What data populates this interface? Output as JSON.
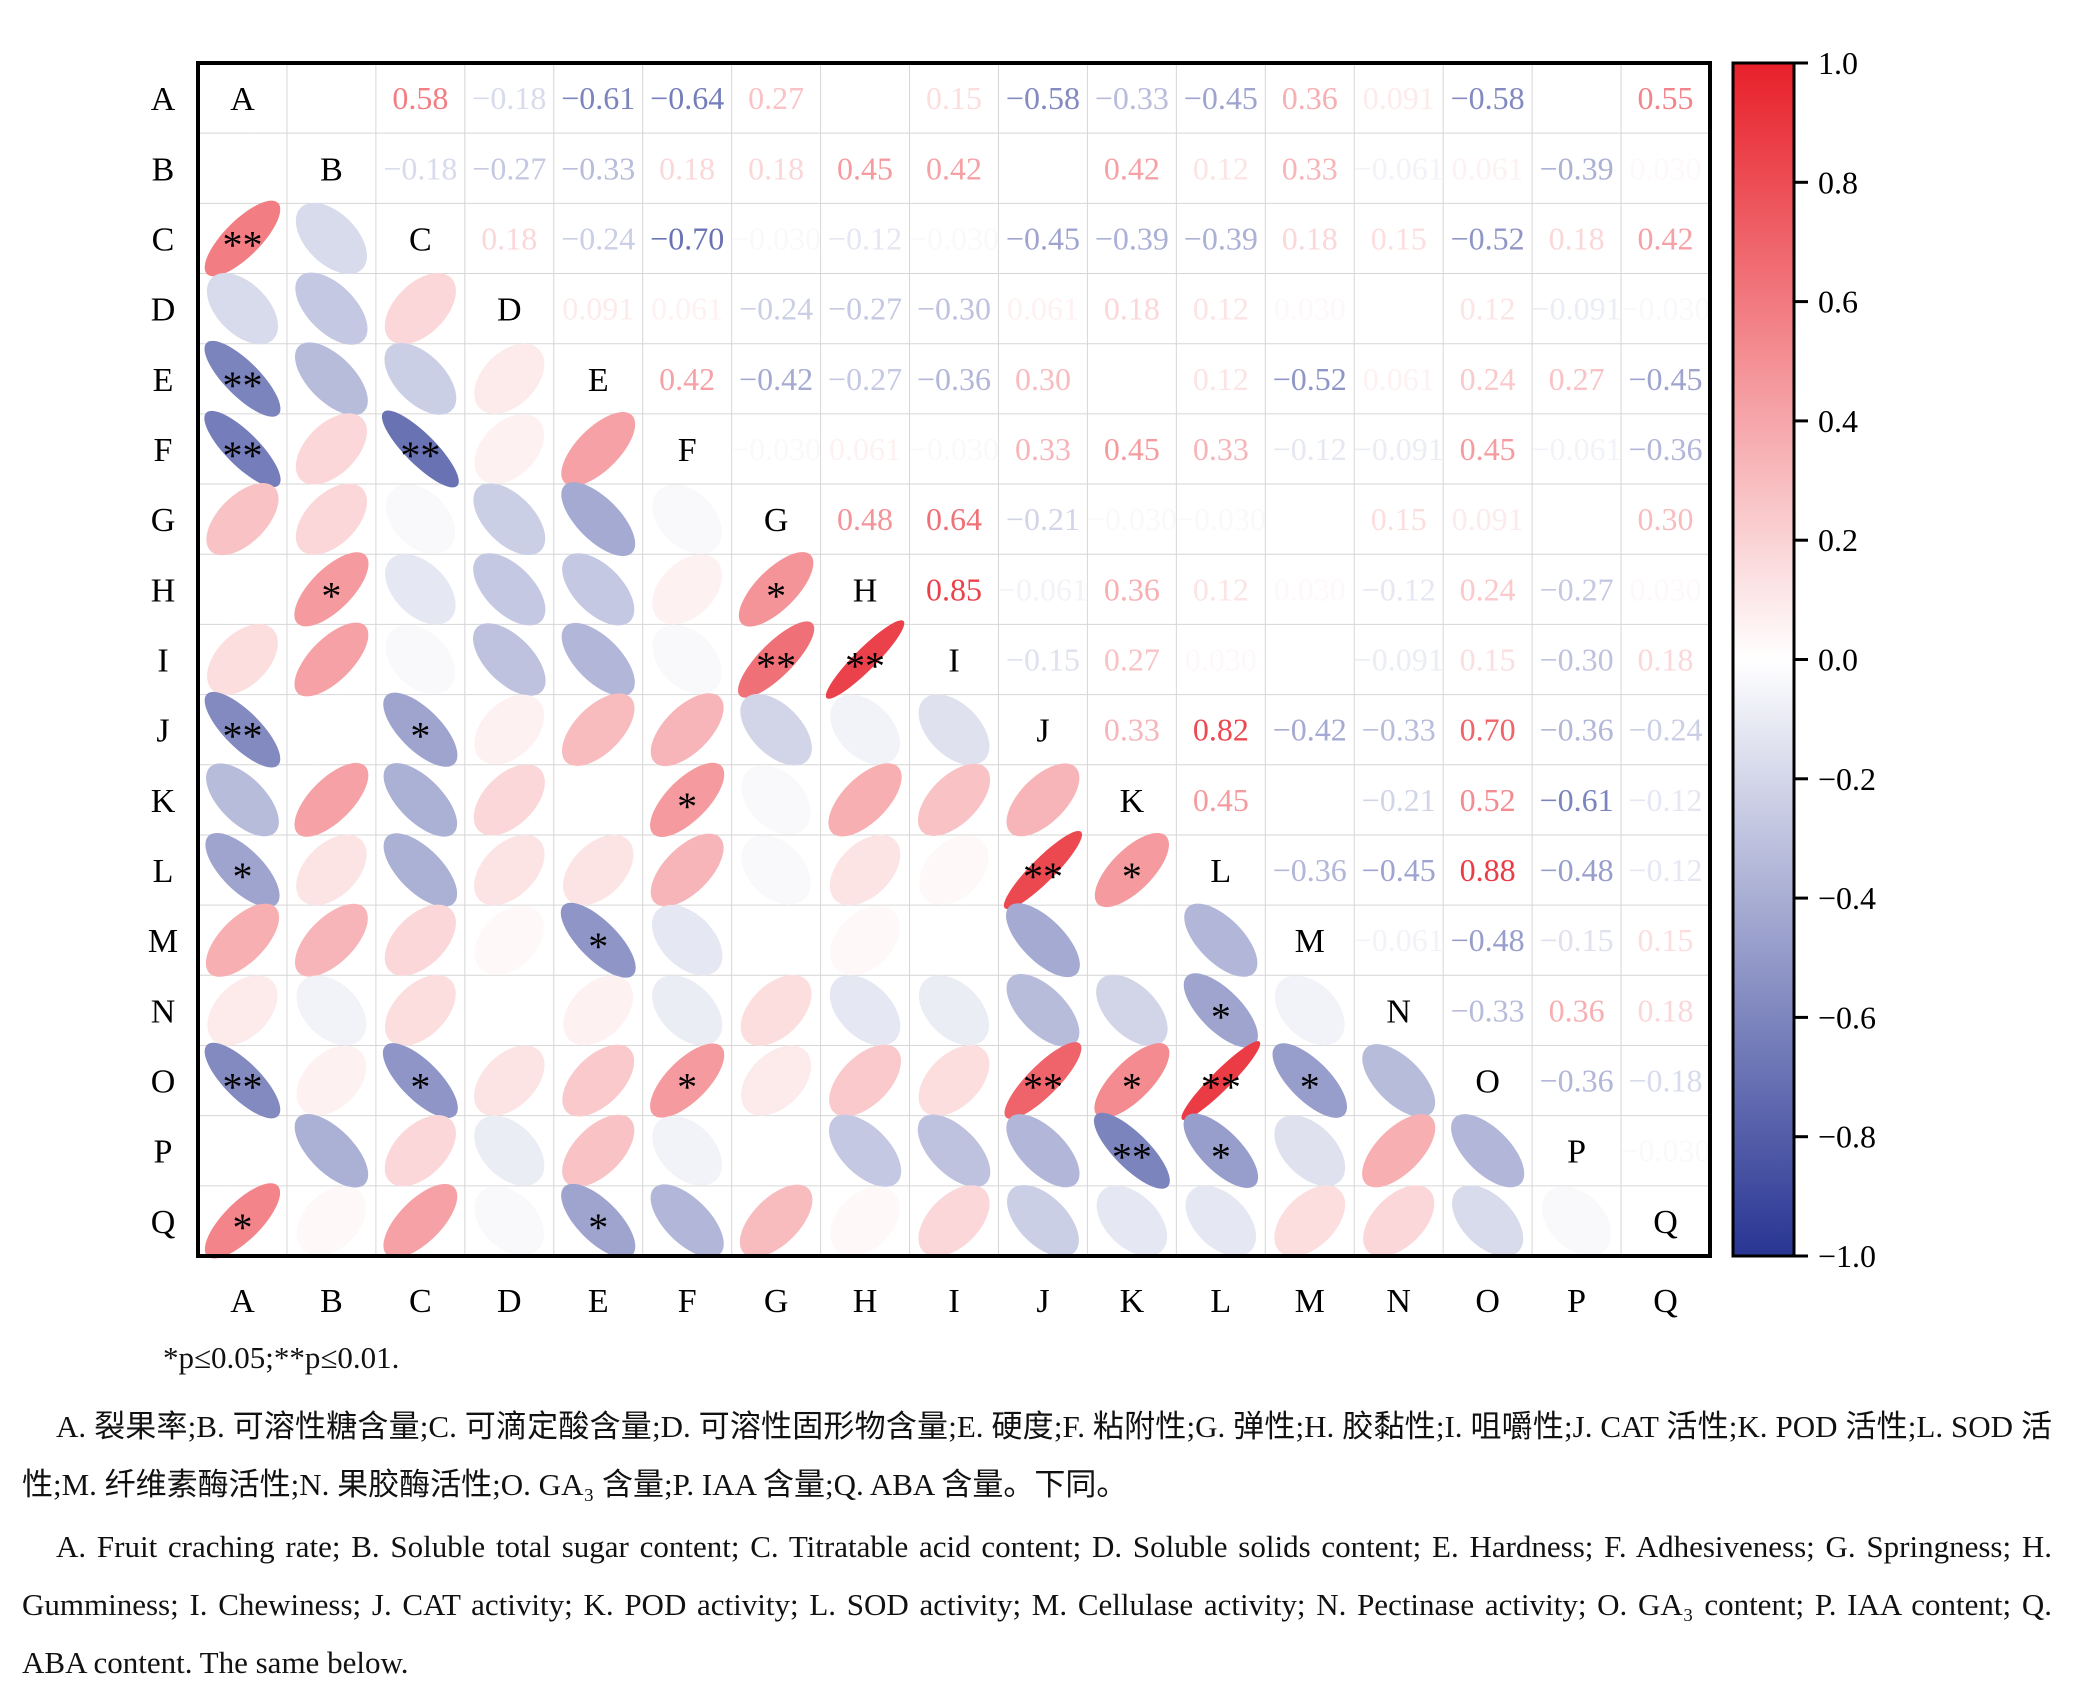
{
  "chart_data": {
    "type": "heatmap",
    "subtype": "correlation-matrix-mixed",
    "title": "",
    "variables": [
      "A",
      "B",
      "C",
      "D",
      "E",
      "F",
      "G",
      "H",
      "I",
      "J",
      "K",
      "L",
      "M",
      "N",
      "O",
      "P",
      "Q"
    ],
    "upper_triangle": "numbers",
    "lower_triangle": "ellipses",
    "matrix": [
      [
        1,
        0,
        0.58,
        -0.18,
        -0.61,
        -0.64,
        0.27,
        0,
        0.15,
        -0.58,
        -0.33,
        -0.45,
        0.36,
        0.091,
        -0.58,
        0,
        0.55
      ],
      [
        0,
        1,
        -0.18,
        -0.27,
        -0.33,
        0.18,
        0.18,
        0.45,
        0.42,
        0,
        0.42,
        0.12,
        0.33,
        -0.061,
        0.061,
        -0.39,
        0.03
      ],
      [
        0.58,
        -0.18,
        1,
        0.18,
        -0.24,
        -0.7,
        -0.03,
        -0.12,
        -0.03,
        -0.45,
        -0.39,
        -0.39,
        0.18,
        0.15,
        -0.52,
        0.18,
        0.42
      ],
      [
        -0.18,
        -0.27,
        0.18,
        1,
        0.091,
        0.061,
        -0.24,
        -0.27,
        -0.3,
        0.061,
        0.18,
        0.12,
        0.03,
        0,
        0.12,
        -0.091,
        -0.03
      ],
      [
        -0.61,
        -0.33,
        -0.24,
        0.091,
        1,
        0.42,
        -0.42,
        -0.27,
        -0.36,
        0.3,
        0,
        0.12,
        -0.52,
        0.061,
        0.24,
        0.27,
        -0.45
      ],
      [
        -0.64,
        0.18,
        -0.7,
        0.061,
        0.42,
        1,
        -0.03,
        0.061,
        -0.03,
        0.33,
        0.45,
        0.33,
        -0.12,
        -0.091,
        0.45,
        -0.061,
        -0.36
      ],
      [
        0.27,
        0.18,
        -0.03,
        -0.24,
        -0.42,
        -0.03,
        1,
        0.48,
        0.64,
        -0.21,
        -0.03,
        -0.03,
        0,
        0.15,
        0.091,
        0,
        0.3
      ],
      [
        0,
        0.45,
        -0.12,
        -0.27,
        -0.27,
        0.061,
        0.48,
        1,
        0.85,
        -0.061,
        0.36,
        0.12,
        0.03,
        -0.12,
        0.24,
        -0.27,
        0.03
      ],
      [
        0.15,
        0.42,
        -0.03,
        -0.3,
        -0.36,
        -0.03,
        0.64,
        0.85,
        1,
        -0.15,
        0.27,
        0.03,
        0,
        -0.091,
        0.15,
        -0.3,
        0.18
      ],
      [
        -0.58,
        0,
        -0.45,
        0.061,
        0.3,
        0.33,
        -0.21,
        -0.061,
        -0.15,
        1,
        0.33,
        0.82,
        -0.42,
        -0.33,
        0.7,
        -0.36,
        -0.24
      ],
      [
        -0.33,
        0.42,
        -0.39,
        0.18,
        0,
        0.45,
        -0.03,
        0.36,
        0.27,
        0.33,
        1,
        0.45,
        0,
        -0.21,
        0.52,
        -0.61,
        -0.12
      ],
      [
        -0.45,
        0.12,
        -0.39,
        0.12,
        0.12,
        0.33,
        -0.03,
        0.12,
        0.03,
        0.82,
        0.45,
        1,
        -0.36,
        -0.45,
        0.88,
        -0.48,
        -0.12
      ],
      [
        0.36,
        0.33,
        0.18,
        0.03,
        -0.52,
        -0.12,
        0,
        0.03,
        0,
        -0.42,
        0,
        -0.36,
        1,
        -0.061,
        -0.48,
        -0.15,
        0.15
      ],
      [
        0.091,
        -0.061,
        0.15,
        0,
        0.061,
        -0.091,
        0.15,
        -0.12,
        -0.091,
        -0.33,
        -0.21,
        -0.45,
        -0.061,
        1,
        -0.33,
        0.36,
        0.18
      ],
      [
        -0.58,
        0.061,
        -0.52,
        0.12,
        0.24,
        0.45,
        0.091,
        0.24,
        0.15,
        0.7,
        0.52,
        0.88,
        -0.48,
        -0.33,
        1,
        -0.36,
        -0.18
      ],
      [
        0,
        -0.39,
        0.18,
        -0.091,
        0.27,
        -0.061,
        0,
        -0.27,
        -0.3,
        -0.36,
        -0.61,
        -0.48,
        -0.15,
        0.36,
        -0.36,
        1,
        -0.03
      ],
      [
        0.55,
        0.03,
        0.42,
        -0.03,
        -0.45,
        -0.36,
        0.3,
        0.03,
        0.18,
        -0.24,
        -0.12,
        -0.12,
        0.15,
        0.18,
        -0.18,
        -0.03,
        1
      ]
    ],
    "upper_labels": [
      [
        "",
        "",
        "0.58",
        "-0.18",
        "-0.61",
        "-0.64",
        "0.27",
        "",
        "0.15",
        "-0.58",
        "-0.33",
        "-0.45",
        "0.36",
        "0.091",
        "-0.58",
        "",
        "0.55"
      ],
      [
        "",
        "",
        "-0.18",
        "-0.27",
        "-0.33",
        "0.18",
        "0.18",
        "0.45",
        "0.42",
        "",
        "0.42",
        "0.12",
        "0.33",
        "-0.061",
        "0.061",
        "-0.39",
        "0.030"
      ],
      [
        "",
        "",
        "",
        "0.18",
        "-0.24",
        "-0.70",
        "-0.030",
        "-0.12",
        "-0.030",
        "-0.45",
        "-0.39",
        "-0.39",
        "0.18",
        "0.15",
        "-0.52",
        "0.18",
        "0.42"
      ],
      [
        "",
        "",
        "",
        "",
        "0.091",
        "0.061",
        "-0.24",
        "-0.27",
        "-0.30",
        "0.061",
        "0.18",
        "0.12",
        "0.030",
        "",
        "0.12",
        "-0.091",
        "-0.030"
      ],
      [
        "",
        "",
        "",
        "",
        "",
        "0.42",
        "-0.42",
        "-0.27",
        "-0.36",
        "0.30",
        "",
        "0.12",
        "-0.52",
        "0.061",
        "0.24",
        "0.27",
        "-0.45"
      ],
      [
        "",
        "",
        "",
        "",
        "",
        "",
        "-0.030",
        "0.061",
        "-0.030",
        "0.33",
        "0.45",
        "0.33",
        "-0.12",
        "-0.091",
        "0.45",
        "-0.061",
        "-0.36"
      ],
      [
        "",
        "",
        "",
        "",
        "",
        "",
        "",
        "0.48",
        "0.64",
        "-0.21",
        "-0.030",
        "-0.030",
        "",
        "0.15",
        "0.091",
        "",
        "0.30"
      ],
      [
        "",
        "",
        "",
        "",
        "",
        "",
        "",
        "",
        "0.85",
        "-0.061",
        "0.36",
        "0.12",
        "0.030",
        "-0.12",
        "0.24",
        "-0.27",
        "0.030"
      ],
      [
        "",
        "",
        "",
        "",
        "",
        "",
        "",
        "",
        "",
        "-0.15",
        "0.27",
        "0.030",
        "",
        "-0.091",
        "0.15",
        "-0.30",
        "0.18"
      ],
      [
        "",
        "",
        "",
        "",
        "",
        "",
        "",
        "",
        "",
        "",
        "0.33",
        "0.82",
        "-0.42",
        "-0.33",
        "0.70",
        "-0.36",
        "-0.24"
      ],
      [
        "",
        "",
        "",
        "",
        "",
        "",
        "",
        "",
        "",
        "",
        "",
        "0.45",
        "",
        "-0.21",
        "0.52",
        "-0.61",
        "-0.12"
      ],
      [
        "",
        "",
        "",
        "",
        "",
        "",
        "",
        "",
        "",
        "",
        "",
        "",
        "-0.36",
        "-0.45",
        "0.88",
        "-0.48",
        "-0.12"
      ],
      [
        "",
        "",
        "",
        "",
        "",
        "",
        "",
        "",
        "",
        "",
        "",
        "",
        "",
        "-0.061",
        "-0.48",
        "-0.15",
        "0.15"
      ],
      [
        "",
        "",
        "",
        "",
        "",
        "",
        "",
        "",
        "",
        "",
        "",
        "",
        "",
        "",
        "-0.33",
        "0.36",
        "0.18"
      ],
      [
        "",
        "",
        "",
        "",
        "",
        "",
        "",
        "",
        "",
        "",
        "",
        "",
        "",
        "",
        "",
        "-0.36",
        "-0.18"
      ],
      [
        "",
        "",
        "",
        "",
        "",
        "",
        "",
        "",
        "",
        "",
        "",
        "",
        "",
        "",
        "",
        "",
        "-0.030"
      ],
      [
        "",
        "",
        "",
        "",
        "",
        "",
        "",
        "",
        "",
        "",
        "",
        "",
        "",
        "",
        "",
        "",
        ""
      ]
    ],
    "significance_marks": [
      {
        "row": "C",
        "col": "A",
        "mark": "**"
      },
      {
        "row": "E",
        "col": "A",
        "mark": "**"
      },
      {
        "row": "F",
        "col": "A",
        "mark": "**"
      },
      {
        "row": "F",
        "col": "C",
        "mark": "**"
      },
      {
        "row": "H",
        "col": "B",
        "mark": "*"
      },
      {
        "row": "H",
        "col": "G",
        "mark": "*"
      },
      {
        "row": "I",
        "col": "G",
        "mark": "**"
      },
      {
        "row": "I",
        "col": "H",
        "mark": "**"
      },
      {
        "row": "J",
        "col": "A",
        "mark": "**"
      },
      {
        "row": "J",
        "col": "C",
        "mark": "*"
      },
      {
        "row": "K",
        "col": "F",
        "mark": "*"
      },
      {
        "row": "L",
        "col": "A",
        "mark": "*"
      },
      {
        "row": "L",
        "col": "J",
        "mark": "**"
      },
      {
        "row": "L",
        "col": "K",
        "mark": "*"
      },
      {
        "row": "M",
        "col": "E",
        "mark": "*"
      },
      {
        "row": "N",
        "col": "L",
        "mark": "*"
      },
      {
        "row": "O",
        "col": "A",
        "mark": "**"
      },
      {
        "row": "O",
        "col": "C",
        "mark": "*"
      },
      {
        "row": "O",
        "col": "F",
        "mark": "*"
      },
      {
        "row": "O",
        "col": "J",
        "mark": "**"
      },
      {
        "row": "O",
        "col": "K",
        "mark": "*"
      },
      {
        "row": "O",
        "col": "L",
        "mark": "**"
      },
      {
        "row": "O",
        "col": "M",
        "mark": "*"
      },
      {
        "row": "P",
        "col": "K",
        "mark": "**"
      },
      {
        "row": "P",
        "col": "L",
        "mark": "*"
      },
      {
        "row": "Q",
        "col": "A",
        "mark": "*"
      },
      {
        "row": "Q",
        "col": "E",
        "mark": "*"
      }
    ],
    "colorbar": {
      "range": [
        -1.0,
        1.0
      ],
      "ticks": [
        "1.0",
        "0.8",
        "0.6",
        "0.4",
        "0.2",
        "0.0",
        "−0.2",
        "−0.4",
        "−0.6",
        "−0.8",
        "−1.0"
      ],
      "tick_values": [
        1.0,
        0.8,
        0.6,
        0.4,
        0.2,
        0.0,
        -0.2,
        -0.4,
        -0.6,
        -0.8,
        -1.0
      ],
      "colors": {
        "positive": "#e8202a",
        "zero": "#ffffff",
        "negative": "#283593"
      }
    },
    "grid": true,
    "legend_position": "right"
  },
  "caption": {
    "significance_note": "*p≤0.05;**p≤0.01.",
    "chinese": "A. 裂果率;B. 可溶性糖含量;C. 可滴定酸含量;D. 可溶性固形物含量;E. 硬度;F. 粘附性;G. 弹性;H. 胶黏性;I. 咀嚼性;J. CAT 活性;K. POD 活性;L. SOD 活性;M. 纤维素酶活性;N. 果胶酶活性;O. GA₃ 含量;P. IAA 含量;Q. ABA 含量。下同。",
    "english": "A. Fruit craching rate; B. Soluble total sugar content; C. Titratable acid content; D. Soluble solids content; E. Hardness; F. Adhesiveness; G. Springness; H. Gumminess; I. Chewiness; J. CAT activity; K. POD activity; L. SOD activity; M. Cellulase activity; N. Pectinase activity; O. GA₃ content; P. IAA content; Q. ABA content. The same below."
  }
}
